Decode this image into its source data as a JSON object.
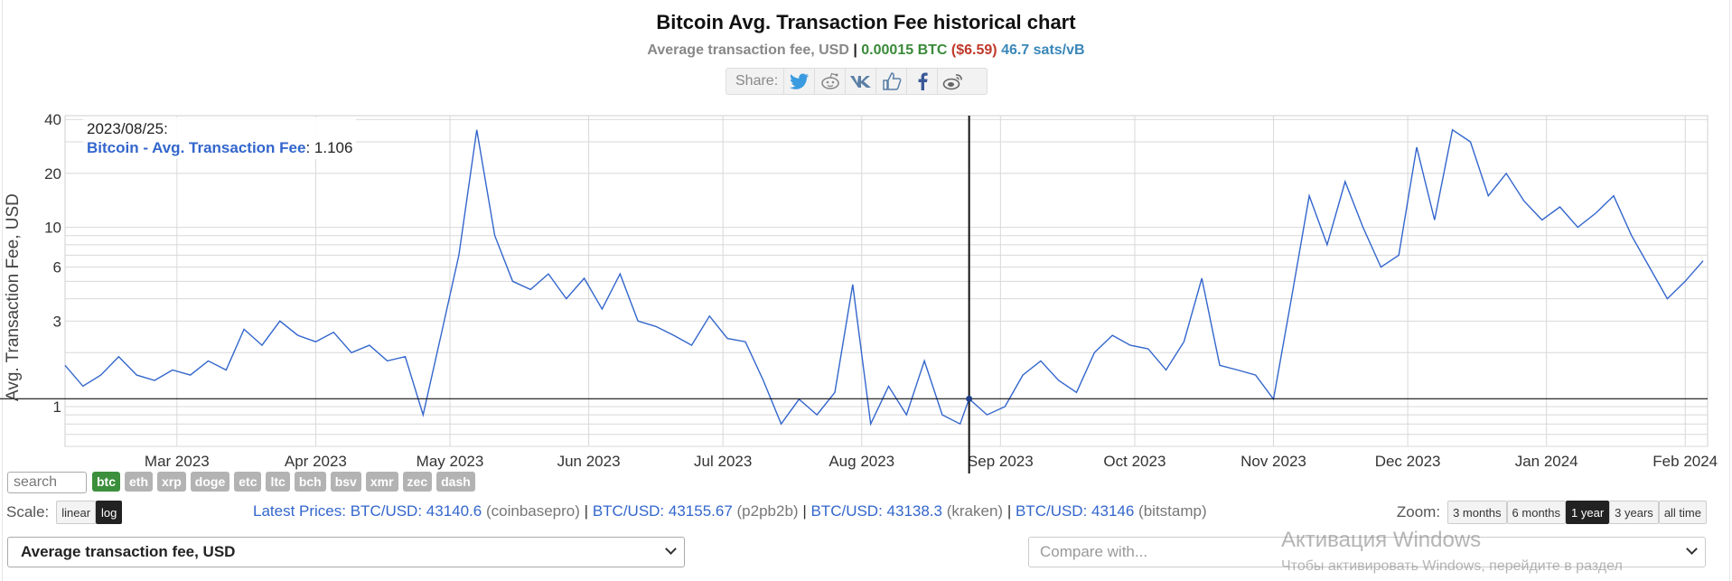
{
  "header": {
    "title": "Bitcoin Avg. Transaction Fee historical chart",
    "subtitle_label": "Average transaction fee, USD",
    "subtitle_sep": " | ",
    "subtitle_btc": "0.00015 BTC",
    "subtitle_usd": "($6.59)",
    "subtitle_sats": "46.7 sats/vB"
  },
  "share": {
    "label": "Share:",
    "icons": [
      "twitter-icon",
      "reddit-icon",
      "vk-icon",
      "like-icon",
      "facebook-icon",
      "weibo-icon"
    ]
  },
  "tooltip": {
    "date": "2023/08/25:",
    "series_name": "Bitcoin - Avg. Transaction Fee",
    "value": "1.106"
  },
  "controls": {
    "search_placeholder": "search",
    "coins": [
      "btc",
      "eth",
      "xrp",
      "doge",
      "etc",
      "ltc",
      "bch",
      "bsv",
      "xmr",
      "zec",
      "dash"
    ],
    "active_coin": "btc",
    "scale_label": "Scale:",
    "scale_linear": "linear",
    "scale_log": "log",
    "zoom_label": "Zoom:",
    "zoom_options": [
      "3 months",
      "6 months",
      "1 year",
      "3 years",
      "all time"
    ],
    "zoom_active": "1 year",
    "metric_select": "Average transaction fee, USD",
    "compare_placeholder": "Compare with..."
  },
  "prices": {
    "label": "Latest Prices: ",
    "items": [
      {
        "pair": "BTC/USD: 43140.6",
        "exchange": "(coinbasepro)"
      },
      {
        "pair": "BTC/USD: 43155.67",
        "exchange": "(p2pb2b)"
      },
      {
        "pair": "BTC/USD: 43138.3",
        "exchange": "(kraken)"
      },
      {
        "pair": "BTC/USD: 43146",
        "exchange": "(bitstamp)"
      }
    ]
  },
  "watermark": {
    "line1": "Активация Windows",
    "line2": "Чтобы активировать Windows, перейдите в раздел"
  },
  "colors": {
    "line": "#3366cc",
    "active_coin": "#3c8f3c",
    "btc_green": "#3a8a3a",
    "usd_red": "#c0392b",
    "sats_blue": "#3a87b8"
  },
  "chart_data": {
    "type": "line",
    "title": "Bitcoin Avg. Transaction Fee historical chart",
    "ylabel": "Avg. Transaction Fee, USD",
    "yscale": "log",
    "ylim": [
      0.6,
      42
    ],
    "xlim": [
      "2023-02-04",
      "2024-02-06"
    ],
    "y_ticks": [
      1,
      3,
      6,
      10,
      20,
      40
    ],
    "x_ticks": [
      {
        "label": "Mar 2023",
        "date": "2023-03-01"
      },
      {
        "label": "Apr 2023",
        "date": "2023-04-01"
      },
      {
        "label": "May 2023",
        "date": "2023-05-01"
      },
      {
        "label": "Jun 2023",
        "date": "2023-06-01"
      },
      {
        "label": "Jul 2023",
        "date": "2023-07-01"
      },
      {
        "label": "Aug 2023",
        "date": "2023-08-01"
      },
      {
        "label": "Sep 2023",
        "date": "2023-09-01"
      },
      {
        "label": "Oct 2023",
        "date": "2023-10-01"
      },
      {
        "label": "Nov 2023",
        "date": "2023-11-01"
      },
      {
        "label": "Dec 2023",
        "date": "2023-12-01"
      },
      {
        "label": "Jan 2024",
        "date": "2024-01-01"
      },
      {
        "label": "Feb 2024",
        "date": "2024-02-01"
      }
    ],
    "crosshair_date": "2023-08-25",
    "crosshair_value": 1.106,
    "series": [
      {
        "name": "Bitcoin - Avg. Transaction Fee",
        "x": [
          "2023-02-04",
          "2023-02-08",
          "2023-02-12",
          "2023-02-16",
          "2023-02-20",
          "2023-02-24",
          "2023-02-28",
          "2023-03-04",
          "2023-03-08",
          "2023-03-12",
          "2023-03-16",
          "2023-03-20",
          "2023-03-24",
          "2023-03-28",
          "2023-04-01",
          "2023-04-05",
          "2023-04-09",
          "2023-04-13",
          "2023-04-17",
          "2023-04-21",
          "2023-04-25",
          "2023-04-29",
          "2023-05-03",
          "2023-05-07",
          "2023-05-11",
          "2023-05-15",
          "2023-05-19",
          "2023-05-23",
          "2023-05-27",
          "2023-05-31",
          "2023-06-04",
          "2023-06-08",
          "2023-06-12",
          "2023-06-16",
          "2023-06-20",
          "2023-06-24",
          "2023-06-28",
          "2023-07-02",
          "2023-07-06",
          "2023-07-10",
          "2023-07-14",
          "2023-07-18",
          "2023-07-22",
          "2023-07-26",
          "2023-07-30",
          "2023-08-03",
          "2023-08-07",
          "2023-08-11",
          "2023-08-15",
          "2023-08-19",
          "2023-08-23",
          "2023-08-25",
          "2023-08-29",
          "2023-09-02",
          "2023-09-06",
          "2023-09-10",
          "2023-09-14",
          "2023-09-18",
          "2023-09-22",
          "2023-09-26",
          "2023-09-30",
          "2023-10-04",
          "2023-10-08",
          "2023-10-12",
          "2023-10-16",
          "2023-10-20",
          "2023-10-24",
          "2023-10-28",
          "2023-11-01",
          "2023-11-05",
          "2023-11-09",
          "2023-11-13",
          "2023-11-17",
          "2023-11-21",
          "2023-11-25",
          "2023-11-29",
          "2023-12-03",
          "2023-12-07",
          "2023-12-11",
          "2023-12-15",
          "2023-12-19",
          "2023-12-23",
          "2023-12-27",
          "2023-12-31",
          "2024-01-04",
          "2024-01-08",
          "2024-01-12",
          "2024-01-16",
          "2024-01-20",
          "2024-01-24",
          "2024-01-28",
          "2024-02-01",
          "2024-02-05"
        ],
        "y": [
          1.7,
          1.3,
          1.5,
          1.9,
          1.5,
          1.4,
          1.6,
          1.5,
          1.8,
          1.6,
          2.7,
          2.2,
          3.0,
          2.5,
          2.3,
          2.6,
          2.0,
          2.2,
          1.8,
          1.9,
          0.9,
          2.5,
          7.0,
          35.0,
          9.0,
          5.0,
          4.5,
          5.5,
          4.0,
          5.2,
          3.5,
          5.5,
          3.0,
          2.8,
          2.5,
          2.2,
          3.2,
          2.4,
          2.3,
          1.4,
          0.8,
          1.1,
          0.9,
          1.2,
          4.8,
          0.8,
          1.3,
          0.9,
          1.8,
          0.9,
          0.8,
          1.106,
          0.9,
          1.0,
          1.5,
          1.8,
          1.4,
          1.2,
          2.0,
          2.5,
          2.2,
          2.1,
          1.6,
          2.3,
          5.2,
          1.7,
          1.6,
          1.5,
          1.1,
          4.0,
          15.0,
          8.0,
          18.0,
          10.0,
          6.0,
          7.0,
          28.0,
          11.0,
          35.0,
          30.0,
          15.0,
          20.0,
          14.0,
          11.0,
          13.0,
          10.0,
          12.0,
          15.0,
          9.0,
          6.0,
          4.0,
          5.0,
          6.5
        ]
      }
    ]
  }
}
